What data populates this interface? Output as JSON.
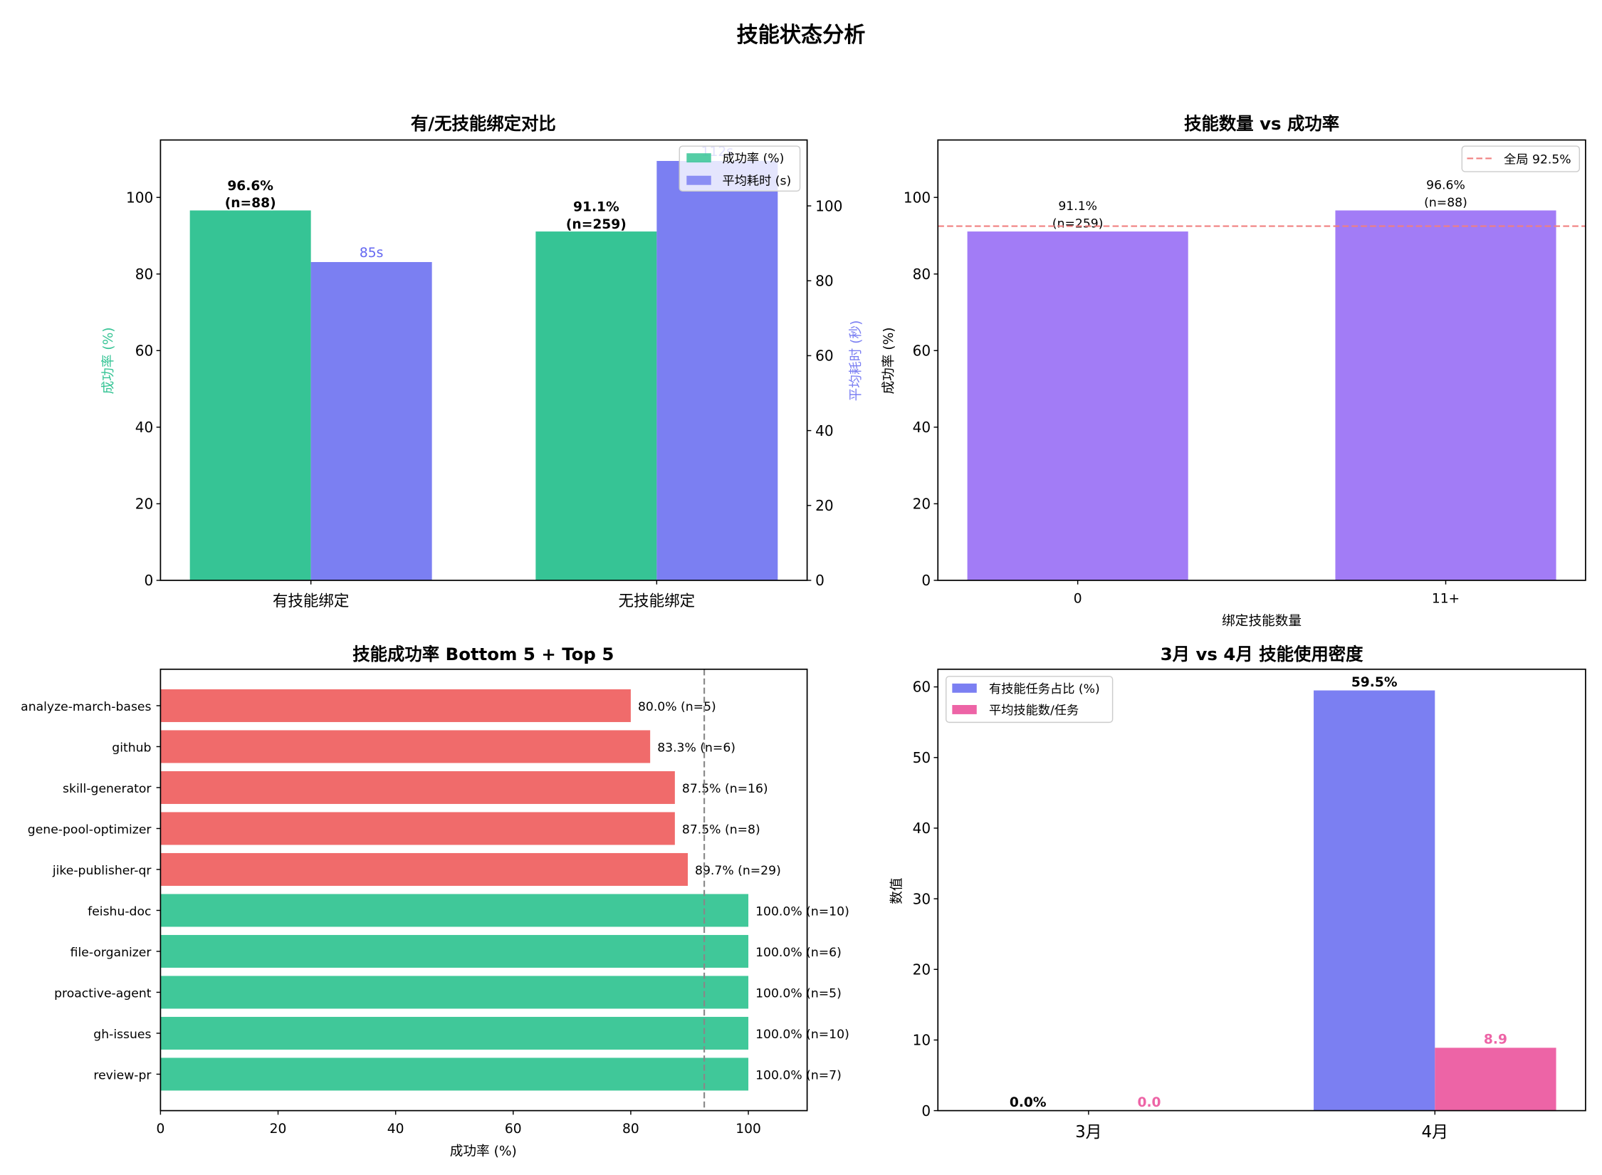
{
  "suptitle": "技能状态分析",
  "chart_data": [
    {
      "type": "bar",
      "title": "有/无技能绑定对比",
      "categories": [
        "有技能绑定",
        "无技能绑定"
      ],
      "series": [
        {
          "name": "成功率 (%)",
          "axis": "left",
          "color": "#36C495",
          "values": [
            96.6,
            91.1
          ],
          "labels": [
            [
              "96.6%",
              "(n=88)"
            ],
            [
              "91.1%",
              "(n=259)"
            ]
          ]
        },
        {
          "name": "平均耗时 (s)",
          "axis": "right",
          "color": "#7B7FF2",
          "values": [
            85,
            112
          ],
          "labels": [
            [
              "85s"
            ],
            [
              "112s"
            ]
          ]
        }
      ],
      "ylabel": "成功率 (%)",
      "ylabel_color": "#36C495",
      "y2label": "平均耗时 (秒)",
      "y2label_color": "#7B7FF2",
      "ylim": [
        0,
        115
      ],
      "y2lim": [
        0,
        117.6
      ],
      "yticks": [
        "0",
        "20",
        "40",
        "60",
        "80",
        "100"
      ],
      "y2ticks": [
        "0",
        "20",
        "40",
        "60",
        "80",
        "100"
      ],
      "legend": "top-right",
      "grid": false
    },
    {
      "type": "bar",
      "title": "技能数量 vs 成功率",
      "categories": [
        "0",
        "11+"
      ],
      "values": [
        91.1,
        96.6
      ],
      "labels": [
        [
          "91.1%",
          "(n=259)"
        ],
        [
          "96.6%",
          "(n=88)"
        ]
      ],
      "color": "#A27CF6",
      "reference_line": {
        "value": 92.5,
        "label": "全局 92.5%",
        "color": "#F08080",
        "style": "dashed"
      },
      "xlabel": "绑定技能数量",
      "ylabel": "成功率 (%)",
      "ylim": [
        0,
        115
      ],
      "yticks": [
        "0",
        "20",
        "40",
        "60",
        "80",
        "100"
      ],
      "legend": "top-right",
      "grid": false
    },
    {
      "type": "barh",
      "title": "技能成功率 Bottom 5 + Top 5",
      "categories": [
        "analyze-march-bases",
        "github",
        "skill-generator",
        "gene-pool-optimizer",
        "jike-publisher-qr",
        "feishu-doc",
        "file-organizer",
        "proactive-agent",
        "gh-issues",
        "review-pr"
      ],
      "values": [
        80.0,
        83.3,
        87.5,
        87.5,
        89.7,
        100,
        100,
        100,
        100,
        100
      ],
      "labels": [
        "80.0% (n=5)",
        "83.3% (n=6)",
        "87.5% (n=16)",
        "87.5% (n=8)",
        "89.7% (n=29)",
        "100.0% (n=10)",
        "100.0% (n=6)",
        "100.0% (n=5)",
        "100.0% (n=10)",
        "100.0% (n=7)"
      ],
      "colors": [
        "#F06B6B",
        "#F06B6B",
        "#F06B6B",
        "#F06B6B",
        "#F06B6B",
        "#40C899",
        "#40C899",
        "#40C899",
        "#40C899",
        "#40C899"
      ],
      "reference_line": {
        "value": 92.5,
        "color": "#888888",
        "style": "dashed"
      },
      "xlabel": "成功率 (%)",
      "xlim": [
        0,
        110
      ],
      "xticks": [
        "0",
        "20",
        "40",
        "60",
        "80",
        "100"
      ],
      "grid": false
    },
    {
      "type": "bar",
      "title": "3月 vs 4月 技能使用密度",
      "categories": [
        "3月",
        "4月"
      ],
      "series": [
        {
          "name": "有技能任务占比 (%)",
          "color": "#7B7FF2",
          "label_color": "#000000",
          "values": [
            0.0,
            59.5
          ],
          "labels": [
            "0.0%",
            "59.5%"
          ]
        },
        {
          "name": "平均技能数/任务",
          "color": "#ED64A6",
          "label_color": "#ED64A6",
          "values": [
            0.0,
            8.9
          ],
          "labels": [
            "0.0",
            "8.9"
          ]
        }
      ],
      "ylabel": "数值",
      "ylim": [
        0,
        62.5
      ],
      "yticks": [
        "0",
        "10",
        "20",
        "30",
        "40",
        "50",
        "60"
      ],
      "legend": "top-left",
      "grid": false
    }
  ]
}
